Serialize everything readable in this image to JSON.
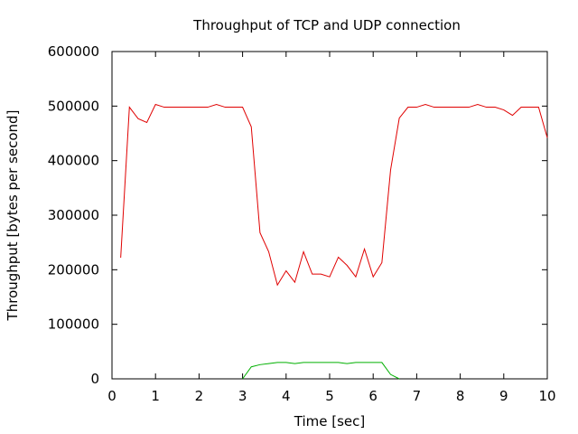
{
  "chart_data": {
    "type": "line",
    "title": "Throughput of TCP and UDP connection",
    "xlabel": "Time [sec]",
    "ylabel": "Throughput [bytes per second]",
    "xlim": [
      0,
      10
    ],
    "ylim": [
      0,
      600000
    ],
    "x_ticks": [
      0,
      1,
      2,
      3,
      4,
      5,
      6,
      7,
      8,
      9,
      10
    ],
    "y_ticks": [
      0,
      100000,
      200000,
      300000,
      400000,
      500000,
      600000
    ],
    "grid": false,
    "legend": "none",
    "series": [
      {
        "color": "#e00000",
        "points": [
          [
            0.2,
            222000
          ],
          [
            0.4,
            498000
          ],
          [
            0.6,
            477000
          ],
          [
            0.8,
            470000
          ],
          [
            1.0,
            503000
          ],
          [
            1.2,
            498000
          ],
          [
            1.4,
            498000
          ],
          [
            1.6,
            498000
          ],
          [
            1.8,
            498000
          ],
          [
            2.0,
            498000
          ],
          [
            2.2,
            498000
          ],
          [
            2.4,
            503000
          ],
          [
            2.6,
            498000
          ],
          [
            2.8,
            498000
          ],
          [
            3.0,
            498000
          ],
          [
            3.2,
            462000
          ],
          [
            3.4,
            268000
          ],
          [
            3.6,
            233000
          ],
          [
            3.8,
            172000
          ],
          [
            4.0,
            198000
          ],
          [
            4.2,
            177000
          ],
          [
            4.4,
            233000
          ],
          [
            4.6,
            192000
          ],
          [
            4.8,
            192000
          ],
          [
            5.0,
            187000
          ],
          [
            5.2,
            223000
          ],
          [
            5.4,
            208000
          ],
          [
            5.6,
            187000
          ],
          [
            5.8,
            238000
          ],
          [
            6.0,
            187000
          ],
          [
            6.2,
            213000
          ],
          [
            6.4,
            383000
          ],
          [
            6.6,
            478000
          ],
          [
            6.8,
            498000
          ],
          [
            7.0,
            498000
          ],
          [
            7.2,
            503000
          ],
          [
            7.4,
            498000
          ],
          [
            7.6,
            498000
          ],
          [
            7.8,
            498000
          ],
          [
            8.0,
            498000
          ],
          [
            8.2,
            498000
          ],
          [
            8.4,
            503000
          ],
          [
            8.6,
            498000
          ],
          [
            8.8,
            498000
          ],
          [
            9.0,
            493000
          ],
          [
            9.2,
            483000
          ],
          [
            9.4,
            498000
          ],
          [
            9.6,
            498000
          ],
          [
            9.8,
            498000
          ],
          [
            10.0,
            442000
          ]
        ]
      },
      {
        "color": "#00b000",
        "points": [
          [
            3.0,
            0
          ],
          [
            3.2,
            22000
          ],
          [
            3.4,
            26000
          ],
          [
            3.6,
            28000
          ],
          [
            3.8,
            30000
          ],
          [
            4.0,
            30000
          ],
          [
            4.2,
            28000
          ],
          [
            4.4,
            30000
          ],
          [
            4.6,
            30000
          ],
          [
            4.8,
            30000
          ],
          [
            5.0,
            30000
          ],
          [
            5.2,
            30000
          ],
          [
            5.4,
            28000
          ],
          [
            5.6,
            30000
          ],
          [
            5.8,
            30000
          ],
          [
            6.0,
            30000
          ],
          [
            6.2,
            30000
          ],
          [
            6.4,
            8000
          ],
          [
            6.6,
            0
          ]
        ]
      }
    ]
  }
}
